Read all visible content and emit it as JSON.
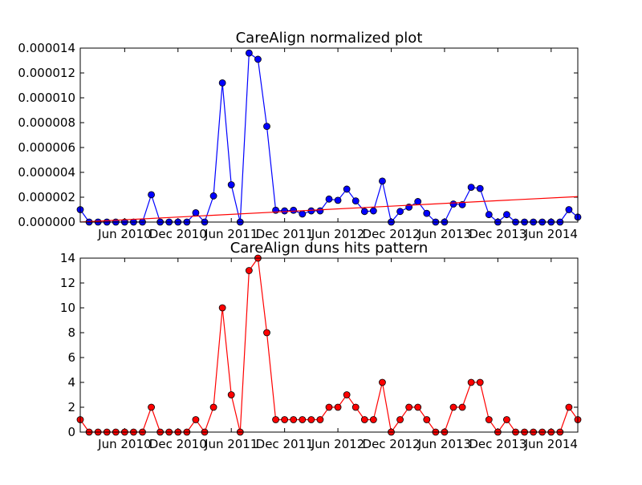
{
  "chart_data": [
    {
      "type": "line",
      "title": "CareAlign normalized plot",
      "xlabel": "",
      "ylabel": "",
      "x_tick_labels": [
        "Jun 2010",
        "Dec 2010",
        "Jun 2011",
        "Dec 2011",
        "Jun 2012",
        "Dec 2012",
        "Jun 2013",
        "Dec 2013",
        "Jun 2014"
      ],
      "y_tick_labels": [
        "0.000000",
        "0.000002",
        "0.000004",
        "0.000006",
        "0.000008",
        "0.000010",
        "0.000012",
        "0.000014"
      ],
      "ylim": [
        0,
        1.4e-05
      ],
      "grid": false,
      "series": [
        {
          "color": "#0000ff",
          "marker_color": "#0000ff",
          "values": [
            1e-06,
            0,
            0,
            0,
            0,
            0,
            0,
            0,
            2.2e-06,
            0,
            0,
            0,
            0,
            7.5e-07,
            0,
            2.1e-06,
            1.12e-05,
            3e-06,
            0,
            1.36e-05,
            1.31e-05,
            7.7e-06,
            9.5e-07,
            9e-07,
            9.5e-07,
            6.5e-07,
            9e-07,
            9e-07,
            1.85e-06,
            1.75e-06,
            2.65e-06,
            1.7e-06,
            8.5e-07,
            9e-07,
            3.3e-06,
            0,
            8.5e-07,
            1.2e-06,
            1.65e-06,
            7e-07,
            0,
            0,
            1.45e-06,
            1.4e-06,
            2.8e-06,
            2.7e-06,
            6e-07,
            0,
            6e-07,
            0,
            0,
            0,
            0,
            0,
            0,
            1e-06,
            4e-07
          ]
        },
        {
          "color": "#ff0000",
          "values_start_end": [
            0,
            2.05e-06
          ]
        }
      ]
    },
    {
      "type": "line",
      "title": "CareAlign duns hits pattern",
      "xlabel": "",
      "ylabel": "",
      "x_tick_labels": [
        "Jun 2010",
        "Dec 2010",
        "Jun 2011",
        "Dec 2011",
        "Jun 2012",
        "Dec 2012",
        "Jun 2013",
        "Dec 2013",
        "Jun 2014"
      ],
      "y_tick_labels": [
        "0",
        "2",
        "4",
        "6",
        "8",
        "10",
        "12",
        "14"
      ],
      "ylim": [
        0,
        14
      ],
      "grid": false,
      "series": [
        {
          "color": "#ff0000",
          "marker_color": "#ff0000",
          "values": [
            1,
            0,
            0,
            0,
            0,
            0,
            0,
            0,
            2,
            0,
            0,
            0,
            0,
            1,
            0,
            2,
            10,
            3,
            0,
            13,
            14,
            8,
            1,
            1,
            1,
            1,
            1,
            1,
            2,
            2,
            3,
            2,
            1,
            1,
            4,
            0,
            1,
            2,
            2,
            1,
            0,
            0,
            2,
            2,
            4,
            4,
            1,
            0,
            1,
            0,
            0,
            0,
            0,
            0,
            0,
            2,
            1
          ]
        }
      ]
    }
  ]
}
